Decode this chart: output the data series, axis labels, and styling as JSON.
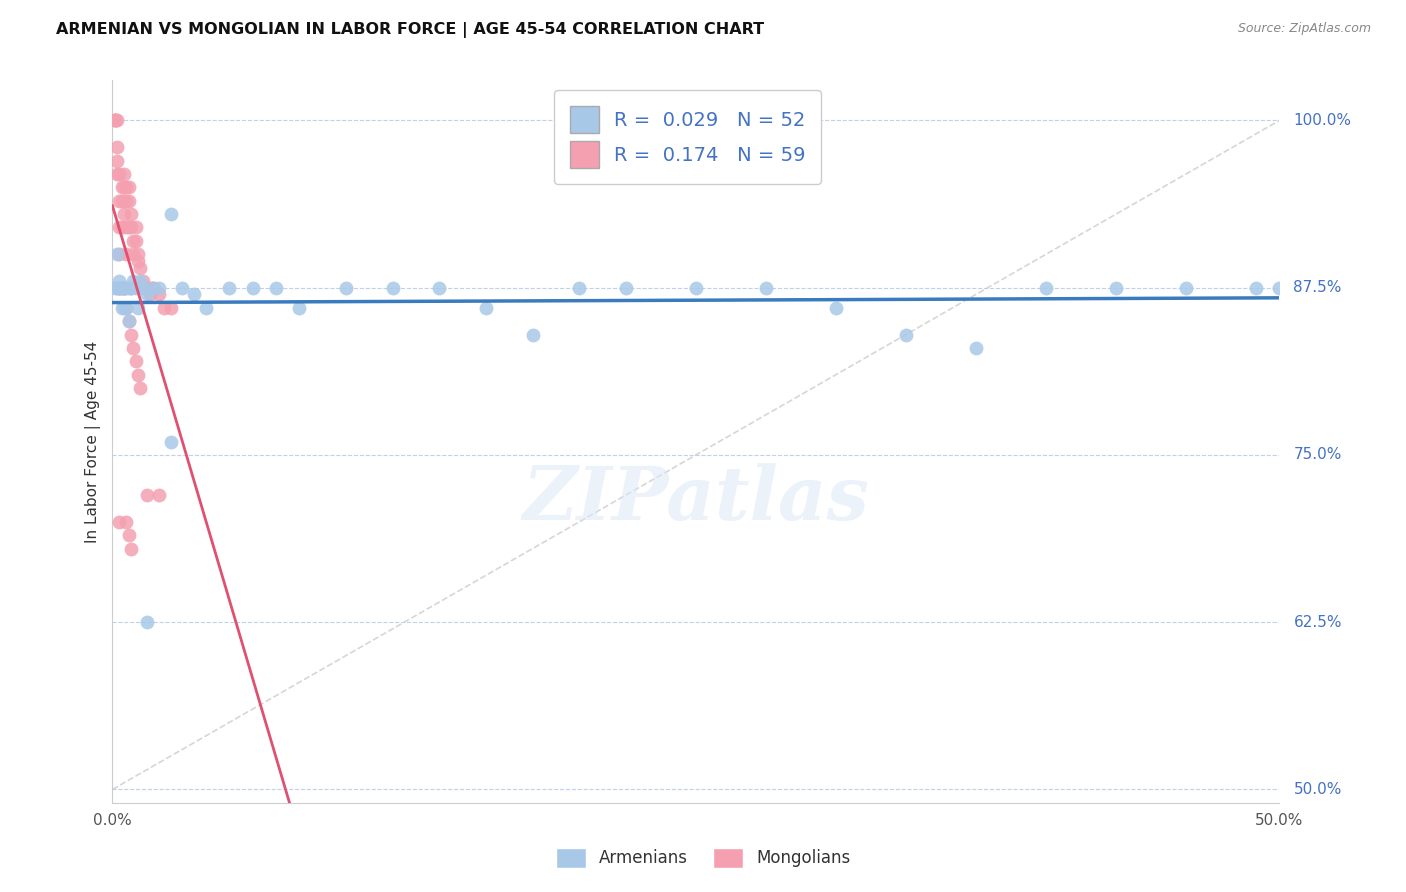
{
  "title": "ARMENIAN VS MONGOLIAN IN LABOR FORCE | AGE 45-54 CORRELATION CHART",
  "source": "Source: ZipAtlas.com",
  "ylabel": "In Labor Force | Age 45-54",
  "ytick_labels": [
    "50.0%",
    "62.5%",
    "75.0%",
    "87.5%",
    "100.0%"
  ],
  "ytick_values": [
    0.5,
    0.625,
    0.75,
    0.875,
    1.0
  ],
  "xlim": [
    0.0,
    0.5
  ],
  "ylim": [
    0.49,
    1.03
  ],
  "armenian_color": "#a8c8e8",
  "mongolian_color": "#f4a0b0",
  "armenian_line_color": "#3a7abf",
  "mongolian_line_color": "#e05070",
  "diagonal_line_color": "#cccccc",
  "R_armenian": 0.029,
  "N_armenian": 52,
  "R_mongolian": 0.174,
  "N_mongolian": 59,
  "watermark": "ZIPatlas",
  "arm_x": [
    0.001,
    0.002,
    0.002,
    0.003,
    0.003,
    0.004,
    0.004,
    0.005,
    0.005,
    0.006,
    0.006,
    0.007,
    0.007,
    0.008,
    0.009,
    0.01,
    0.011,
    0.012,
    0.013,
    0.015,
    0.017,
    0.02,
    0.025,
    0.03,
    0.035,
    0.04,
    0.05,
    0.06,
    0.07,
    0.08,
    0.1,
    0.12,
    0.14,
    0.16,
    0.18,
    0.2,
    0.22,
    0.25,
    0.28,
    0.31,
    0.34,
    0.37,
    0.4,
    0.43,
    0.46,
    0.49,
    0.5,
    0.003,
    0.005,
    0.008,
    0.015,
    0.025
  ],
  "arm_y": [
    0.875,
    0.9,
    0.875,
    0.875,
    0.88,
    0.86,
    0.875,
    0.86,
    0.875,
    0.875,
    0.86,
    0.875,
    0.85,
    0.875,
    0.88,
    0.875,
    0.86,
    0.88,
    0.875,
    0.87,
    0.875,
    0.875,
    0.93,
    0.875,
    0.87,
    0.86,
    0.875,
    0.875,
    0.875,
    0.86,
    0.875,
    0.875,
    0.875,
    0.86,
    0.84,
    0.875,
    0.875,
    0.875,
    0.875,
    0.86,
    0.84,
    0.83,
    0.875,
    0.875,
    0.875,
    0.875,
    0.875,
    0.875,
    0.875,
    0.875,
    0.625,
    0.76
  ],
  "mon_x": [
    0.001,
    0.001,
    0.001,
    0.002,
    0.002,
    0.002,
    0.002,
    0.003,
    0.003,
    0.003,
    0.003,
    0.004,
    0.004,
    0.004,
    0.005,
    0.005,
    0.005,
    0.005,
    0.006,
    0.006,
    0.006,
    0.006,
    0.007,
    0.007,
    0.007,
    0.008,
    0.008,
    0.009,
    0.009,
    0.01,
    0.01,
    0.011,
    0.011,
    0.012,
    0.013,
    0.014,
    0.015,
    0.016,
    0.017,
    0.018,
    0.02,
    0.022,
    0.025,
    0.003,
    0.004,
    0.005,
    0.006,
    0.007,
    0.008,
    0.009,
    0.01,
    0.011,
    0.012,
    0.015,
    0.02,
    0.006,
    0.007,
    0.008,
    0.003
  ],
  "mon_y": [
    1.0,
    1.0,
    1.0,
    0.98,
    0.97,
    0.96,
    1.0,
    0.96,
    0.94,
    0.92,
    0.9,
    0.95,
    0.94,
    0.92,
    0.96,
    0.95,
    0.94,
    0.93,
    0.95,
    0.94,
    0.92,
    0.9,
    0.95,
    0.94,
    0.92,
    0.93,
    0.92,
    0.91,
    0.9,
    0.92,
    0.91,
    0.9,
    0.895,
    0.89,
    0.88,
    0.875,
    0.875,
    0.87,
    0.875,
    0.875,
    0.87,
    0.86,
    0.86,
    0.875,
    0.875,
    0.875,
    0.86,
    0.85,
    0.84,
    0.83,
    0.82,
    0.81,
    0.8,
    0.72,
    0.72,
    0.7,
    0.69,
    0.68,
    0.7
  ]
}
